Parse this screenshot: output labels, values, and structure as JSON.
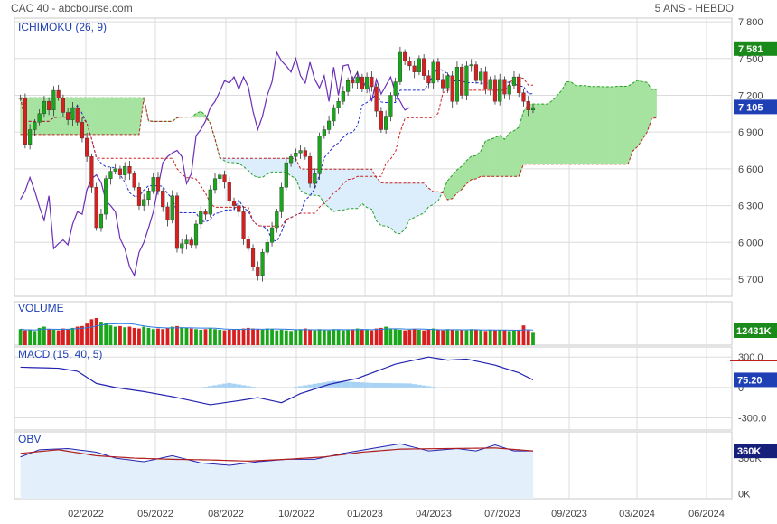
{
  "header": {
    "title": "CAC 40 - abcbourse.com",
    "period": "5 ANS - HEBDO"
  },
  "colors": {
    "up": "#1aa61a",
    "down": "#d81e1e",
    "tenkan": "#1f2fd0",
    "kijun": "#d02020",
    "chikou": "#6b2fb6",
    "cloud_bull": "#a6e3a0",
    "cloud_bear": "#dceefc",
    "macd": "#2323b0",
    "obv": "#2323b0",
    "obv_signal": "#b01e1e",
    "grid": "#dcdcdc"
  },
  "chart_data": {
    "type": "candlestick",
    "x_ticks": [
      "02/2022",
      "05/2022",
      "08/2022",
      "10/2022",
      "01/2023",
      "04/2023",
      "07/2023",
      "09/2023",
      "03/2024",
      "06/2024"
    ],
    "panels": [
      {
        "name": "price",
        "label": "ICHIMOKU (26, 9)",
        "y_ticks": [
          7800,
          7500,
          7200,
          6900,
          6600,
          6300,
          6000,
          5700
        ],
        "ylim": [
          5560,
          7830
        ],
        "badges": [
          {
            "value": 7581,
            "text": "7 581",
            "color": "#1a8a1a"
          },
          {
            "value": 7105,
            "text": "7 105",
            "color": "#1f3fb4"
          }
        ],
        "closes": [
          7180,
          6800,
          6920,
          6980,
          7050,
          7150,
          7080,
          7240,
          7180,
          7060,
          7000,
          7100,
          6980,
          6850,
          6700,
          6450,
          6120,
          6230,
          6520,
          6580,
          6600,
          6550,
          6620,
          6560,
          6450,
          6300,
          6350,
          6420,
          6530,
          6420,
          6290,
          6180,
          6380,
          5950,
          5990,
          6020,
          5980,
          6150,
          6250,
          6230,
          6430,
          6520,
          6550,
          6490,
          6340,
          6300,
          6250,
          6030,
          5950,
          5800,
          5730,
          5920,
          6000,
          6120,
          6250,
          6450,
          6650,
          6700,
          6730,
          6750,
          6700,
          6480,
          6560,
          6870,
          6920,
          6990,
          7100,
          7150,
          7230,
          7320,
          7300,
          7350,
          7250,
          7350,
          7270,
          7070,
          6920,
          7030,
          7200,
          7310,
          7550,
          7480,
          7440,
          7390,
          7500,
          7360,
          7300,
          7470,
          7330,
          7260,
          7360,
          7150,
          7430,
          7200,
          7440,
          7450,
          7320,
          7390,
          7250,
          7330,
          7150,
          7330,
          7210,
          7280,
          7350,
          7220,
          7150,
          7080,
          7100
        ],
        "volumes": [
          260,
          240,
          250,
          230,
          280,
          300,
          260,
          250,
          240,
          270,
          260,
          280,
          300,
          310,
          350,
          420,
          440,
          380,
          360,
          320,
          300,
          310,
          290,
          300,
          280,
          270,
          300,
          280,
          260,
          270,
          260,
          280,
          300,
          310,
          290,
          280,
          270,
          260,
          250,
          260,
          270,
          260,
          250,
          240,
          250,
          260,
          260,
          270,
          280,
          270,
          260,
          250,
          270,
          260,
          240,
          250,
          240,
          230,
          250,
          260,
          270,
          250,
          240,
          260,
          250,
          240,
          260,
          250,
          240,
          250,
          260,
          270,
          260,
          250,
          240,
          270,
          280,
          300,
          270,
          260,
          250,
          240,
          250,
          260,
          250,
          240,
          250,
          270,
          250,
          240,
          260,
          250,
          240,
          250,
          240,
          260,
          250,
          240,
          230,
          250,
          240,
          250,
          240,
          230,
          240,
          250,
          320,
          240,
          200
        ],
        "volume_label": "VOLUME",
        "volume_badge": "12431K"
      },
      {
        "name": "macd",
        "label": "MACD (15, 40, 5)",
        "y_ticks": [
          300,
          0,
          -300
        ],
        "y_tick_labels": [
          "300.0",
          "0",
          "-300.0"
        ],
        "ylim": [
          -420,
          400
        ],
        "badge": {
          "value": 75.2,
          "text": "75.20",
          "color": "#1f3fb4"
        },
        "macd_knots": [
          [
            0,
            200
          ],
          [
            8,
            190
          ],
          [
            12,
            160
          ],
          [
            16,
            40
          ],
          [
            20,
            0
          ],
          [
            26,
            -40
          ],
          [
            32,
            -90
          ],
          [
            40,
            -170
          ],
          [
            46,
            -130
          ],
          [
            50,
            -100
          ],
          [
            55,
            -150
          ],
          [
            59,
            -60
          ],
          [
            65,
            30
          ],
          [
            71,
            90
          ],
          [
            79,
            230
          ],
          [
            86,
            300
          ],
          [
            90,
            270
          ],
          [
            94,
            280
          ],
          [
            100,
            220
          ],
          [
            105,
            145
          ],
          [
            108,
            75
          ]
        ],
        "hist_knots": [
          [
            38,
            0
          ],
          [
            44,
            45
          ],
          [
            50,
            0
          ],
          [
            57,
            0
          ],
          [
            66,
            65
          ],
          [
            74,
            45
          ],
          [
            82,
            40
          ],
          [
            88,
            0
          ]
        ]
      },
      {
        "name": "obv",
        "label": "OBV",
        "y_ticks": [
          300,
          0
        ],
        "y_tick_labels": [
          "300K",
          "0K"
        ],
        "ylim": [
          -40,
          520
        ],
        "badge": {
          "value": 360,
          "text": "360K",
          "color": "#16207a"
        },
        "obv_knots": [
          [
            0,
            310
          ],
          [
            4,
            370
          ],
          [
            10,
            380
          ],
          [
            16,
            350
          ],
          [
            20,
            300
          ],
          [
            26,
            270
          ],
          [
            32,
            320
          ],
          [
            38,
            260
          ],
          [
            44,
            240
          ],
          [
            50,
            270
          ],
          [
            56,
            290
          ],
          [
            62,
            290
          ],
          [
            68,
            340
          ],
          [
            74,
            380
          ],
          [
            80,
            420
          ],
          [
            86,
            360
          ],
          [
            92,
            380
          ],
          [
            96,
            360
          ],
          [
            100,
            410
          ],
          [
            104,
            360
          ],
          [
            108,
            360
          ]
        ],
        "signal_knots": [
          [
            0,
            340
          ],
          [
            8,
            370
          ],
          [
            16,
            320
          ],
          [
            24,
            300
          ],
          [
            32,
            290
          ],
          [
            40,
            285
          ],
          [
            48,
            275
          ],
          [
            56,
            290
          ],
          [
            64,
            310
          ],
          [
            72,
            350
          ],
          [
            80,
            375
          ],
          [
            90,
            380
          ],
          [
            100,
            385
          ],
          [
            108,
            360
          ]
        ]
      }
    ]
  }
}
